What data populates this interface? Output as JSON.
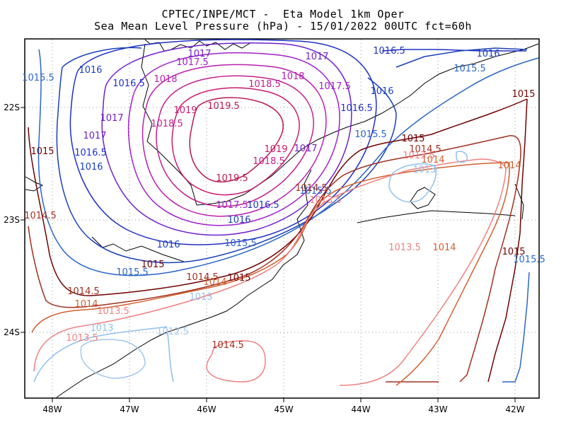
{
  "title": {
    "line1": "CPTEC/INPE/MCT -  Eta Model 1km Oper",
    "line2": "Sea Mean Level Pressure (hPa) - 15/01/2022 00UTC fct=60h"
  },
  "axes": {
    "x_ticks": [
      "48W",
      "47W",
      "46W",
      "45W",
      "44W",
      "43W",
      "42W"
    ],
    "y_ticks": [
      "22S",
      "23S",
      "24S"
    ]
  },
  "colors": {
    "1012.5": "#a0c8f0",
    "1013": "#90c0f0",
    "1013.5": "#f08080",
    "1014": "#d06030",
    "1014.5": "#a03020",
    "1015": "#700000",
    "1015.5": "#2a66c4",
    "1016": "#1a40b8",
    "1016.5": "#2030c0",
    "1017": "#7020c8",
    "1017.5": "#a020c8",
    "1018": "#b820b0",
    "1018.5": "#c02090",
    "1019": "#c81c6c",
    "1019.5": "#b81850",
    "coast": "#000000"
  },
  "contour_labels": [
    {
      "text": "1017",
      "color": "1017"
    },
    {
      "text": "1017.5",
      "color": "1017.5"
    },
    {
      "text": "1017",
      "color": "1017"
    },
    {
      "text": "1016.5",
      "color": "1016.5"
    },
    {
      "text": "1016",
      "color": "1016"
    },
    {
      "text": "1015.5",
      "color": "1015.5"
    },
    {
      "text": "1016",
      "color": "1016"
    },
    {
      "text": "1018",
      "color": "1018"
    },
    {
      "text": "1018",
      "color": "1018"
    },
    {
      "text": "1016.5",
      "color": "1016.5"
    },
    {
      "text": "1018.5",
      "color": "1018.5"
    },
    {
      "text": "1017.5",
      "color": "1017.5"
    },
    {
      "text": "1015.5",
      "color": "1015.5"
    },
    {
      "text": "1016",
      "color": "1016"
    },
    {
      "text": "1015",
      "color": "1015"
    },
    {
      "text": "1019",
      "color": "1019"
    },
    {
      "text": "1019.5",
      "color": "1019.5"
    },
    {
      "text": "1016.5",
      "color": "1016.5"
    },
    {
      "text": "1017",
      "color": "1017"
    },
    {
      "text": "1018.5",
      "color": "1018.5"
    },
    {
      "text": "1017",
      "color": "1017"
    },
    {
      "text": "1015.5",
      "color": "1015.5"
    },
    {
      "text": "1015",
      "color": "1015"
    },
    {
      "text": "1015",
      "color": "1015"
    },
    {
      "text": "1016.5",
      "color": "1016.5"
    },
    {
      "text": "1019",
      "color": "1019"
    },
    {
      "text": "1017",
      "color": "1017"
    },
    {
      "text": "1014.5",
      "color": "1014.5"
    },
    {
      "text": "1014",
      "color": "1014"
    },
    {
      "text": "1013.5",
      "color": "1013.5"
    },
    {
      "text": "1013",
      "color": "1013"
    },
    {
      "text": "1018.5",
      "color": "1018.5"
    },
    {
      "text": "1014",
      "color": "1014"
    },
    {
      "text": "1016",
      "color": "1016"
    },
    {
      "text": "1019.5",
      "color": "1019.5"
    },
    {
      "text": "1015.5",
      "color": "1015.5"
    },
    {
      "text": "1014.5",
      "color": "1014.5"
    },
    {
      "text": "1013.5",
      "color": "1013.5"
    },
    {
      "text": "1017.5",
      "color": "1017.5"
    },
    {
      "text": "1016.5",
      "color": "1016.5"
    },
    {
      "text": "1014.5",
      "color": "1014.5"
    },
    {
      "text": "1016",
      "color": "1016"
    },
    {
      "text": "1015.5",
      "color": "1015.5"
    },
    {
      "text": "1013.5",
      "color": "1013.5"
    },
    {
      "text": "1014",
      "color": "1014"
    },
    {
      "text": "1015",
      "color": "1015"
    },
    {
      "text": "1015.5",
      "color": "1015.5"
    },
    {
      "text": "1016",
      "color": "1016"
    },
    {
      "text": "1015.5",
      "color": "1015.5"
    },
    {
      "text": "1015",
      "color": "1015"
    },
    {
      "text": "1014.5",
      "color": "1014.5"
    },
    {
      "text": "1014",
      "color": "1014"
    },
    {
      "text": "1015",
      "color": "1015"
    },
    {
      "text": "1014.5",
      "color": "1014.5"
    },
    {
      "text": "1014",
      "color": "1014"
    },
    {
      "text": "1013.5",
      "color": "1013.5"
    },
    {
      "text": "1013",
      "color": "1013"
    },
    {
      "text": "1013",
      "color": "1013"
    },
    {
      "text": "1012.5",
      "color": "1012.5"
    },
    {
      "text": "1013.5",
      "color": "1013.5"
    },
    {
      "text": "1014.5",
      "color": "1014.5"
    }
  ]
}
